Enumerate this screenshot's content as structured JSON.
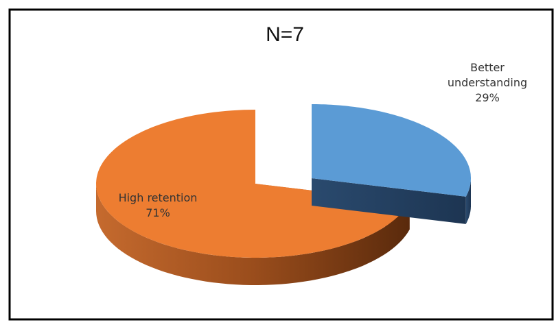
{
  "chart_data": {
    "type": "pie",
    "title": "N=7",
    "categories": [
      "Better understanding",
      "High retention"
    ],
    "values": [
      29,
      71
    ],
    "value_labels": [
      "29%",
      "71%"
    ],
    "colors": [
      "#5b9bd5",
      "#ed7d31"
    ]
  }
}
